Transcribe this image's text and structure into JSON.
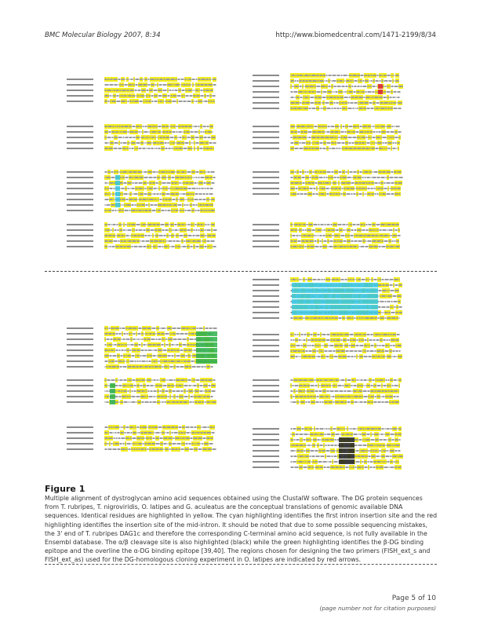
{
  "header": {
    "journal": "BMC Molecular Biology 2007, 8:34",
    "url": "http://www.biomedcentral.com/1471-2199/8/34"
  },
  "figure": {
    "title": "Figure 1",
    "caption": "Multiple alignment of dystroglycan amino acid sequences obtained using the ClustalW software. The DG protein sequences from T. rubripes, T. nigroviridis, O. latipes and G. aculeatus are the conceptual translations of genomic available DNA sequences. Identical residues are highlighted in yellow. The cyan highlighting identifies the first intron insertion site and the red highlighting identifies the insertion site of the mid-intron. It should be noted that due to some possible sequencing mistakes, the 3' end of T. rubripes DAG1c and therefore the corresponding C-terminal amino acid sequence, is not fully available in the Ensembl database. The α/β cleavage site is also highlighted (black) while the green highlighting identifies the β-DG binding epitope and the overline the α-DG binding epitope [39,40]. The regions chosen for designing the two primers (FISH_ext_s and FISH_ext_as) used for the DG-homologous cloning experiment in O. latipes are indicated by red arrows."
  },
  "footer": {
    "page": "Page 5 of 10",
    "note": "(page number not for citation purposes)"
  },
  "colors": {
    "identical": "#f4ee1e",
    "first_intron": "#35c8e4",
    "mid_intron": "#e0203a",
    "binding_epitope": "#2bb24a",
    "cleavage_site": "#222222"
  }
}
